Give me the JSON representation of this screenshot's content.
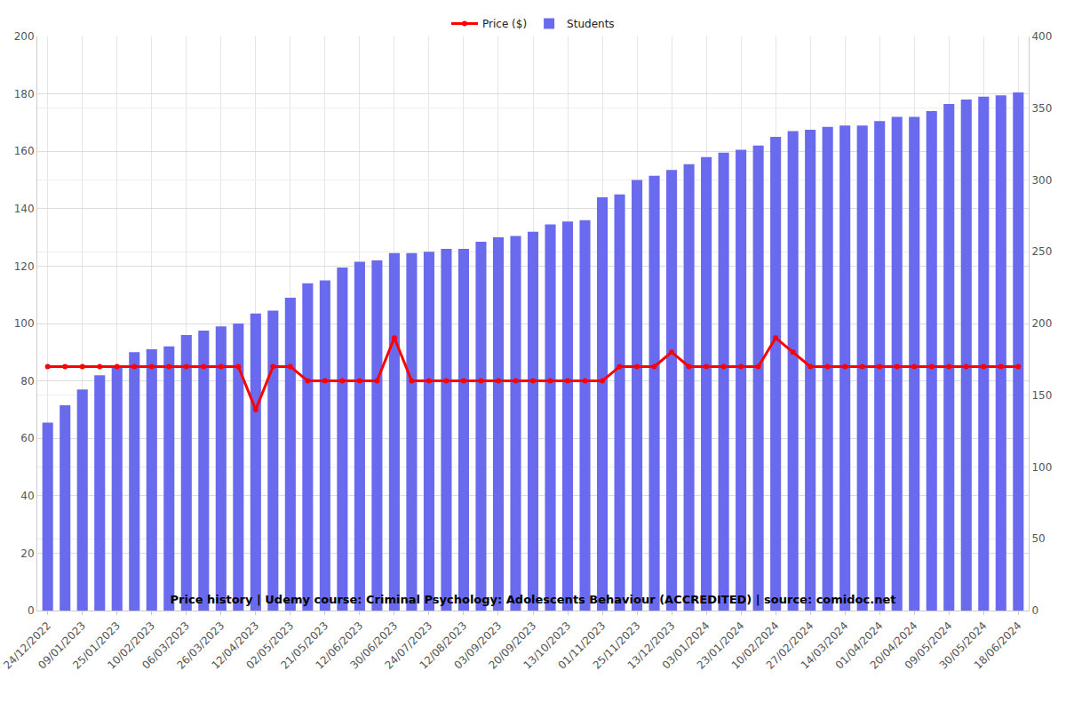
{
  "chart_data": {
    "type": "bar",
    "title": "Price history | Udemy course: Criminal Psychology: Adolescents Behaviour (ACCREDITED) | source: comidoc.net",
    "categories": [
      "24/12/2022",
      null,
      "09/01/2023",
      null,
      "25/01/2023",
      null,
      "10/02/2023",
      null,
      "06/03/2023",
      null,
      "26/03/2023",
      null,
      "12/04/2023",
      null,
      "02/05/2023",
      null,
      "21/05/2023",
      null,
      "12/06/2023",
      null,
      "30/06/2023",
      null,
      "24/07/2023",
      null,
      "12/08/2023",
      null,
      "03/09/2023",
      null,
      "20/09/2023",
      null,
      "13/10/2023",
      null,
      "01/11/2023",
      null,
      "25/11/2023",
      null,
      "13/12/2023",
      null,
      "03/01/2024",
      null,
      "23/01/2024",
      null,
      "10/02/2024",
      null,
      "27/02/2024",
      null,
      "14/03/2024",
      null,
      "01/04/2024",
      null,
      "20/04/2024",
      null,
      "09/05/2024",
      null,
      "30/05/2024",
      null,
      "18/06/2024"
    ],
    "series": [
      {
        "name": "Price ($)",
        "type": "line",
        "color": "#ff0000",
        "marker": "circle",
        "values": [
          85,
          85,
          85,
          85,
          85,
          85,
          85,
          85,
          85,
          85,
          85,
          85,
          70,
          85,
          85,
          80,
          80,
          80,
          80,
          80,
          95,
          80,
          80,
          80,
          80,
          80,
          80,
          80,
          80,
          80,
          80,
          80,
          80,
          85,
          85,
          85,
          90,
          85,
          85,
          85,
          85,
          85,
          95,
          90,
          85,
          85,
          85,
          85,
          85,
          85,
          85,
          85,
          85,
          85,
          85,
          85,
          85
        ]
      },
      {
        "name": "Students",
        "type": "bar",
        "color": "#6a6aee",
        "axis": "y2",
        "values": [
          131,
          143,
          154,
          164,
          170,
          180,
          182,
          184,
          192,
          195,
          198,
          200,
          207,
          209,
          218,
          228,
          230,
          239,
          243,
          244,
          249,
          249,
          250,
          252,
          252,
          257,
          260,
          261,
          264,
          269,
          271,
          272,
          288,
          290,
          300,
          303,
          307,
          311,
          316,
          319,
          321,
          324,
          330,
          334,
          335,
          337,
          338,
          338,
          341,
          344,
          344,
          348,
          353,
          356,
          358,
          359,
          361
        ]
      }
    ],
    "ylim": [
      0,
      200
    ],
    "yticks": [
      0,
      20,
      40,
      60,
      80,
      100,
      120,
      140,
      160,
      180,
      200
    ],
    "y2lim": [
      0,
      400
    ],
    "y2ticks": [
      0,
      50,
      100,
      150,
      200,
      250,
      300,
      350,
      400
    ],
    "grid": true,
    "legend": "top"
  }
}
